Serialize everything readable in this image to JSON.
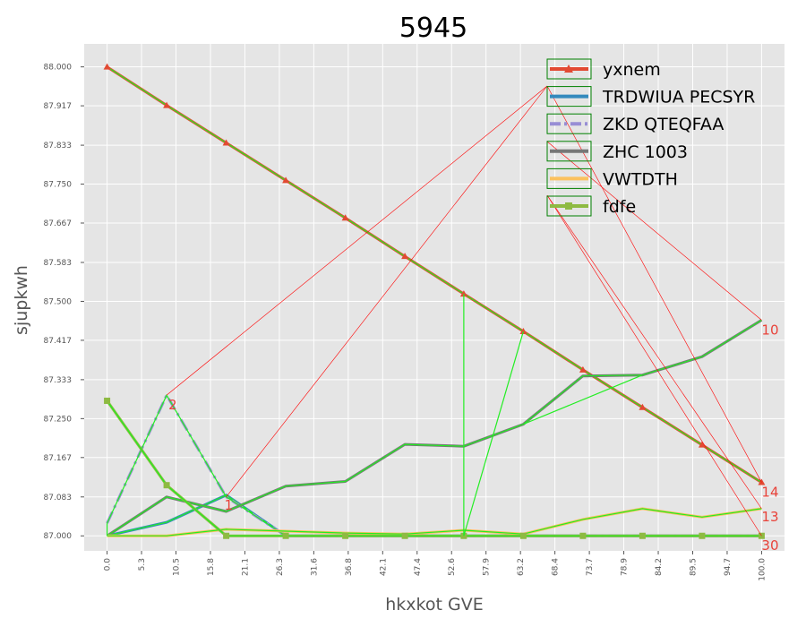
{
  "chart_data": {
    "type": "line",
    "title": "5945",
    "xlabel": "hkxkot GVE",
    "ylabel": "sjupkwh",
    "xlim": [
      -3.5,
      103.5
    ],
    "ylim": [
      86.968,
      88.049
    ],
    "grid": true,
    "legend_position": "top-right",
    "x_ticks": [
      "0.0",
      "5.3",
      "10.5",
      "15.8",
      "21.1",
      "26.3",
      "31.6",
      "36.8",
      "42.1",
      "47.4",
      "52.6",
      "57.9",
      "63.2",
      "68.4",
      "73.7",
      "78.9",
      "84.2",
      "89.5",
      "94.7",
      "100.0"
    ],
    "y_ticks": [
      "87.000",
      "87.083",
      "87.167",
      "87.250",
      "87.333",
      "87.417",
      "87.500",
      "87.583",
      "87.667",
      "87.750",
      "87.833",
      "87.917",
      "88.000"
    ],
    "series": [
      {
        "name": "yxnem",
        "color": "#e24a33",
        "marker": "triangle",
        "width": 3,
        "x": [
          0,
          9.1,
          18.2,
          27.3,
          36.4,
          45.5,
          54.5,
          63.6,
          72.7,
          81.8,
          90.9,
          100
        ],
        "y": [
          88.0,
          87.918,
          87.838,
          87.758,
          87.678,
          87.596,
          87.516,
          87.436,
          87.354,
          87.274,
          87.194,
          87.114
        ]
      },
      {
        "name": "TRDWIUA PECSYR",
        "color": "#348abd",
        "marker": "none",
        "width": 3,
        "x": [
          0,
          9.1,
          18.2,
          27.3,
          36.4,
          45.5,
          54.5,
          63.6,
          72.7,
          81.8,
          90.9,
          100
        ],
        "y": [
          87.0,
          87.029,
          87.087,
          87.0,
          87.0,
          87.0,
          87.0,
          87.0,
          87.0,
          87.0,
          87.0,
          87.0
        ]
      },
      {
        "name": "ZKD QTEQFAA",
        "color": "#988ed5",
        "marker": "none",
        "width": 3,
        "dash": "14 5 3 5",
        "x": [
          0,
          9.1,
          18.2,
          27.3,
          36.4,
          45.5,
          54.5,
          63.6,
          72.7,
          81.8,
          90.9,
          100
        ],
        "y": [
          87.027,
          87.3,
          87.083,
          87.0,
          87.0,
          87.0,
          87.0,
          87.0,
          87.0,
          87.0,
          87.0,
          87.0
        ]
      },
      {
        "name": "ZHC 1003",
        "color": "#777777",
        "marker": "none",
        "width": 3,
        "x": [
          0,
          9.1,
          18.2,
          27.3,
          36.4,
          45.5,
          54.5,
          63.6,
          72.7,
          81.8,
          90.9,
          100
        ],
        "y": [
          87.0,
          87.083,
          87.052,
          87.106,
          87.116,
          87.195,
          87.191,
          87.238,
          87.341,
          87.343,
          87.382,
          87.46
        ]
      },
      {
        "name": "VWTDTH",
        "color": "#fbc15e",
        "marker": "none",
        "width": 3,
        "x": [
          0,
          9.1,
          18.2,
          27.3,
          36.4,
          45.5,
          54.5,
          63.6,
          72.7,
          81.8,
          90.9,
          100
        ],
        "y": [
          87.0,
          87.0,
          87.014,
          87.01,
          87.006,
          87.004,
          87.012,
          87.004,
          87.035,
          87.058,
          87.04,
          87.058
        ]
      },
      {
        "name": "fdfe",
        "color": "#8eba42",
        "marker": "square",
        "width": 3,
        "x": [
          0,
          9.1,
          18.2,
          27.3,
          36.4,
          45.5,
          54.5,
          63.6,
          72.7,
          81.8,
          90.9,
          100
        ],
        "y": [
          87.288,
          87.108,
          87.0,
          87.0,
          87.0,
          87.0,
          87.0,
          87.0,
          87.0,
          87.0,
          87.0,
          87.0
        ]
      }
    ],
    "annotations": [
      {
        "text": "10",
        "x": 100,
        "y": 87.46
      },
      {
        "text": "2",
        "x": 9.1,
        "y": 87.3
      },
      {
        "text": "14",
        "x": 100,
        "y": 87.114
      },
      {
        "text": "13",
        "x": 100,
        "y": 87.058
      },
      {
        "text": "30",
        "x": 100,
        "y": 87.0
      },
      {
        "text": "1",
        "x": 18.2,
        "y": 87.083
      }
    ]
  }
}
